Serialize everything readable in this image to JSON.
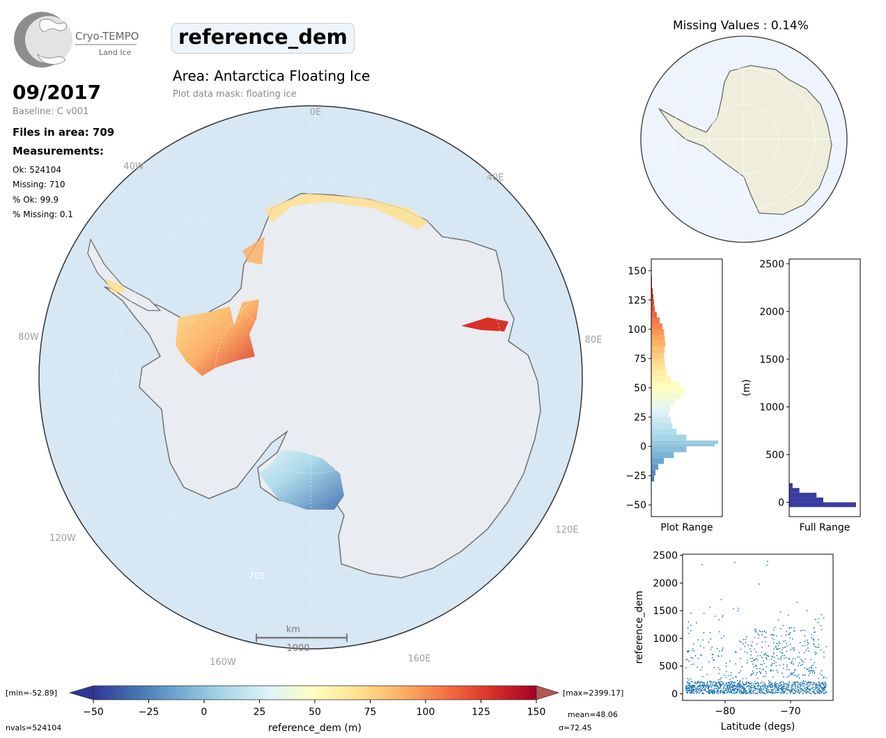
{
  "logo": {
    "name": "Cryo-TEMPO",
    "sub": "Land Ice"
  },
  "title": "reference_dem",
  "area_label": "Area: Antarctica Floating Ice",
  "mask_label": "Plot data mask: floating ice",
  "date": "09/2017",
  "baseline": "Baseline: C v001",
  "files_in_area": "Files in area: 709",
  "measurements_title": "Measurements:",
  "stats": {
    "ok": "Ok: 524104",
    "missing": "Missing: 710",
    "pct_ok": "% Ok: 99.9",
    "pct_missing": "% Missing: 0.1"
  },
  "missing_values_title": "Missing Values : 0.14%",
  "map": {
    "lon_labels": [
      "0E",
      "40E",
      "80E",
      "120E",
      "160E",
      "160W",
      "120W",
      "80W",
      "40W"
    ],
    "lat_label": "70S",
    "scale_unit": "km",
    "scale_value": "1000",
    "colors": {
      "ocean": "#d7e7f4",
      "land": "#e9ecf0",
      "coast": "#707070"
    }
  },
  "colorbar": {
    "label": "reference_dem (m)",
    "ticks": [
      "-50",
      "-25",
      "0",
      "25",
      "50",
      "75",
      "100",
      "125",
      "150"
    ],
    "min_label": "[min=-52.89]",
    "max_label": "[max=2399.17]",
    "nvals": "nvals=524104",
    "mean": "mean=48.06",
    "sigma": "σ=72.45",
    "colormap": [
      "#313695",
      "#4575b4",
      "#74add1",
      "#abd9e9",
      "#e0f3f8",
      "#ffffbf",
      "#fee090",
      "#fdae61",
      "#f46d43",
      "#d73027",
      "#a50026"
    ]
  },
  "chart_data": [
    {
      "type": "bar",
      "orientation": "horizontal",
      "xlabel": "Plot Range",
      "ylim": [
        -60,
        160
      ],
      "yticks": [
        "-50",
        "-25",
        "0",
        "25",
        "50",
        "75",
        "100",
        "125",
        "150"
      ],
      "bins": [
        -30,
        -25,
        -20,
        -15,
        -10,
        -5,
        0,
        2,
        5,
        10,
        15,
        20,
        25,
        30,
        35,
        40,
        45,
        50,
        55,
        60,
        65,
        70,
        75,
        80,
        85,
        90,
        95,
        100,
        105,
        110,
        115,
        120,
        125,
        130,
        135,
        140
      ],
      "values": [
        4,
        6,
        10,
        18,
        32,
        50,
        90,
        95,
        50,
        36,
        30,
        28,
        25,
        27,
        33,
        42,
        48,
        40,
        28,
        22,
        20,
        19,
        18,
        19,
        20,
        19,
        18,
        16,
        12,
        8,
        5,
        4,
        3,
        2,
        1,
        1
      ]
    },
    {
      "type": "bar",
      "orientation": "horizontal",
      "xlabel": "Full Range",
      "ylabel": "(m)",
      "ylim": [
        -150,
        2550
      ],
      "yticks": [
        "0",
        "500",
        "1000",
        "1500",
        "2000",
        "2500"
      ],
      "bins": [
        -50,
        0,
        50,
        100,
        150
      ],
      "values": [
        98,
        50,
        40,
        15,
        5
      ]
    },
    {
      "type": "scatter",
      "xlabel": "Latitude (degs)",
      "ylabel": "reference_dem",
      "xlim": [
        -86.5,
        -63.5
      ],
      "ylim": [
        -120,
        2520
      ],
      "xticks": [
        "−80",
        "−70"
      ],
      "yticks": [
        "0",
        "500",
        "1000",
        "1500",
        "2000",
        "2500"
      ],
      "color": "#1f77b4"
    }
  ]
}
